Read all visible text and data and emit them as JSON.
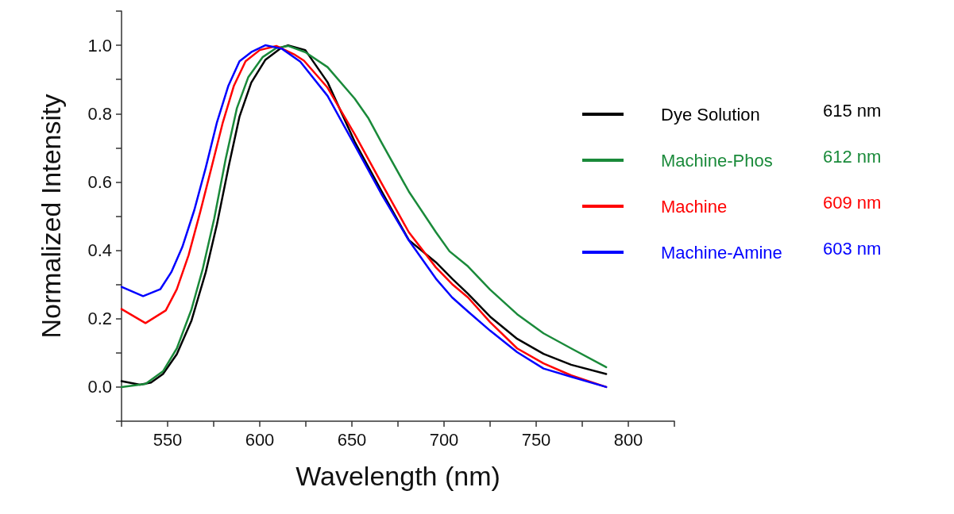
{
  "chart_data": {
    "type": "line",
    "xlabel": "Wavelength (nm)",
    "ylabel": "Normalized Intensity",
    "xlim": [
      525,
      825
    ],
    "ylim": [
      -0.1,
      1.1
    ],
    "xticks": [
      {
        "value": 525,
        "label": null
      },
      550,
      {
        "value": 575,
        "label": null
      },
      600,
      {
        "value": 625,
        "label": null
      },
      650,
      {
        "value": 675,
        "label": null
      },
      700,
      {
        "value": 725,
        "label": null
      },
      750,
      {
        "value": 775,
        "label": null
      },
      800,
      {
        "value": 825,
        "label": null
      }
    ],
    "yticks": [
      {
        "value": -0.1,
        "label": null
      },
      {
        "value": 0,
        "label": "0.0"
      },
      {
        "value": 0.1,
        "label": null
      },
      0.2,
      {
        "value": 0.3,
        "label": null
      },
      0.4,
      {
        "value": 0.5,
        "label": null
      },
      0.6,
      {
        "value": 0.7,
        "label": null
      },
      0.8,
      {
        "value": 0.9,
        "label": null
      },
      {
        "value": 1,
        "label": "1.0"
      },
      {
        "value": 1.1,
        "label": null
      }
    ],
    "grid": false,
    "legend": "top right",
    "marker": "none",
    "line_style": "solid",
    "annotations": [
      "615 nm",
      "612 nm",
      "609 nm",
      "603 nm"
    ],
    "series": [
      {
        "name": "Dye Solution",
        "color": "#000000",
        "x": [
          525,
          535,
          541,
          547.5,
          555,
          563,
          570.7,
          576.8,
          583,
          589,
          595.4,
          603,
          612,
          615.4,
          624.7,
          636.8,
          651.5,
          666,
          680.9,
          695.6,
          704.4,
          713,
          725,
          739.7,
          754,
          769,
          788
        ],
        "values": [
          0.017,
          0.007,
          0.013,
          0.038,
          0.096,
          0.195,
          0.336,
          0.477,
          0.642,
          0.791,
          0.891,
          0.957,
          0.994,
          1.0,
          0.986,
          0.892,
          0.718,
          0.574,
          0.43,
          0.365,
          0.317,
          0.273,
          0.206,
          0.141,
          0.097,
          0.065,
          0.038
        ]
      },
      {
        "name": "Machine-Phos",
        "color": "#1a8a3a",
        "x": [
          525,
          538,
          547.5,
          555,
          563,
          569,
          575.3,
          581.5,
          587.6,
          593.8,
          601.5,
          609,
          615.4,
          624.7,
          636.8,
          651.5,
          658.8,
          666,
          680.9,
          695.6,
          703,
          713,
          725,
          739.7,
          754,
          769,
          788
        ],
        "values": [
          0.0,
          0.009,
          0.046,
          0.113,
          0.228,
          0.344,
          0.493,
          0.667,
          0.816,
          0.907,
          0.965,
          0.992,
          0.998,
          0.98,
          0.936,
          0.844,
          0.788,
          0.716,
          0.572,
          0.453,
          0.397,
          0.353,
          0.285,
          0.213,
          0.157,
          0.113,
          0.058
        ]
      },
      {
        "name": "Machine",
        "color": "#ff0000",
        "x": [
          525,
          538,
          549,
          555,
          561.4,
          567.6,
          573.8,
          580,
          586,
          592.3,
          600,
          609,
          618.5,
          624,
          636.8,
          651.5,
          666,
          680.9,
          695.6,
          704.4,
          713,
          725,
          739.7,
          754,
          769,
          788
        ],
        "values": [
          0.228,
          0.187,
          0.224,
          0.286,
          0.386,
          0.51,
          0.642,
          0.775,
          0.882,
          0.953,
          0.986,
          0.998,
          0.974,
          0.955,
          0.876,
          0.74,
          0.597,
          0.453,
          0.35,
          0.301,
          0.262,
          0.19,
          0.113,
          0.069,
          0.034,
          0.0
        ]
      },
      {
        "name": "Machine-Amine",
        "color": "#0000ff",
        "x": [
          525,
          536.7,
          546,
          552,
          558,
          564.5,
          570.7,
          576.8,
          583,
          589,
          595.4,
          603,
          612,
          622,
          636.8,
          651.5,
          666,
          680.9,
          695.6,
          704.4,
          713,
          725,
          739.7,
          754,
          769,
          788
        ],
        "values": [
          0.293,
          0.266,
          0.286,
          0.336,
          0.41,
          0.518,
          0.642,
          0.775,
          0.882,
          0.953,
          0.98,
          1.0,
          0.99,
          0.952,
          0.852,
          0.708,
          0.565,
          0.429,
          0.317,
          0.262,
          0.221,
          0.165,
          0.102,
          0.054,
          0.03,
          0.0
        ]
      }
    ]
  }
}
